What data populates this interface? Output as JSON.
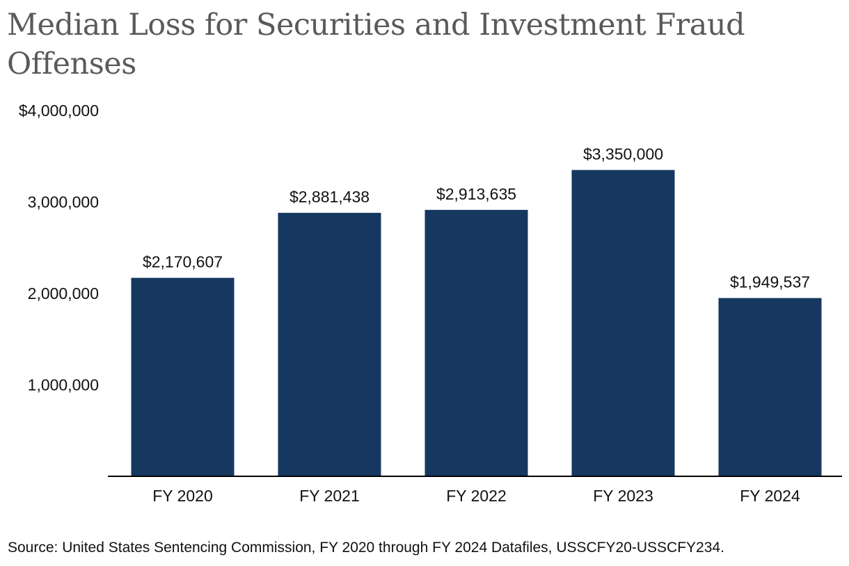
{
  "colors": {
    "bar": "#16375f",
    "axis": "#000000",
    "title": "#5a5a5a",
    "text": "#111111"
  },
  "source": "Source: United States Sentencing Commission, FY 2020 through FY 2024 Datafiles, USSCFY20-USSCFY234.",
  "chart_data": {
    "type": "bar",
    "title": "Median Loss for Securities and Investment Fraud Offenses",
    "xlabel": "",
    "ylabel": "",
    "categories": [
      "FY 2020",
      "FY 2021",
      "FY 2022",
      "FY 2023",
      "FY 2024"
    ],
    "values": [
      2170607,
      2881438,
      2913635,
      3350000,
      1949537
    ],
    "value_labels": [
      "$2,170,607",
      "$2,881,438",
      "$2,913,635",
      "$3,350,000",
      "$1,949,537"
    ],
    "ylim": [
      0,
      4000000
    ],
    "yticks": [
      1000000,
      2000000,
      3000000,
      4000000
    ],
    "ytick_labels": [
      "1,000,000",
      "2,000,000",
      "3,000,000",
      "$4,000,000"
    ],
    "grid": false,
    "legend": "none"
  }
}
